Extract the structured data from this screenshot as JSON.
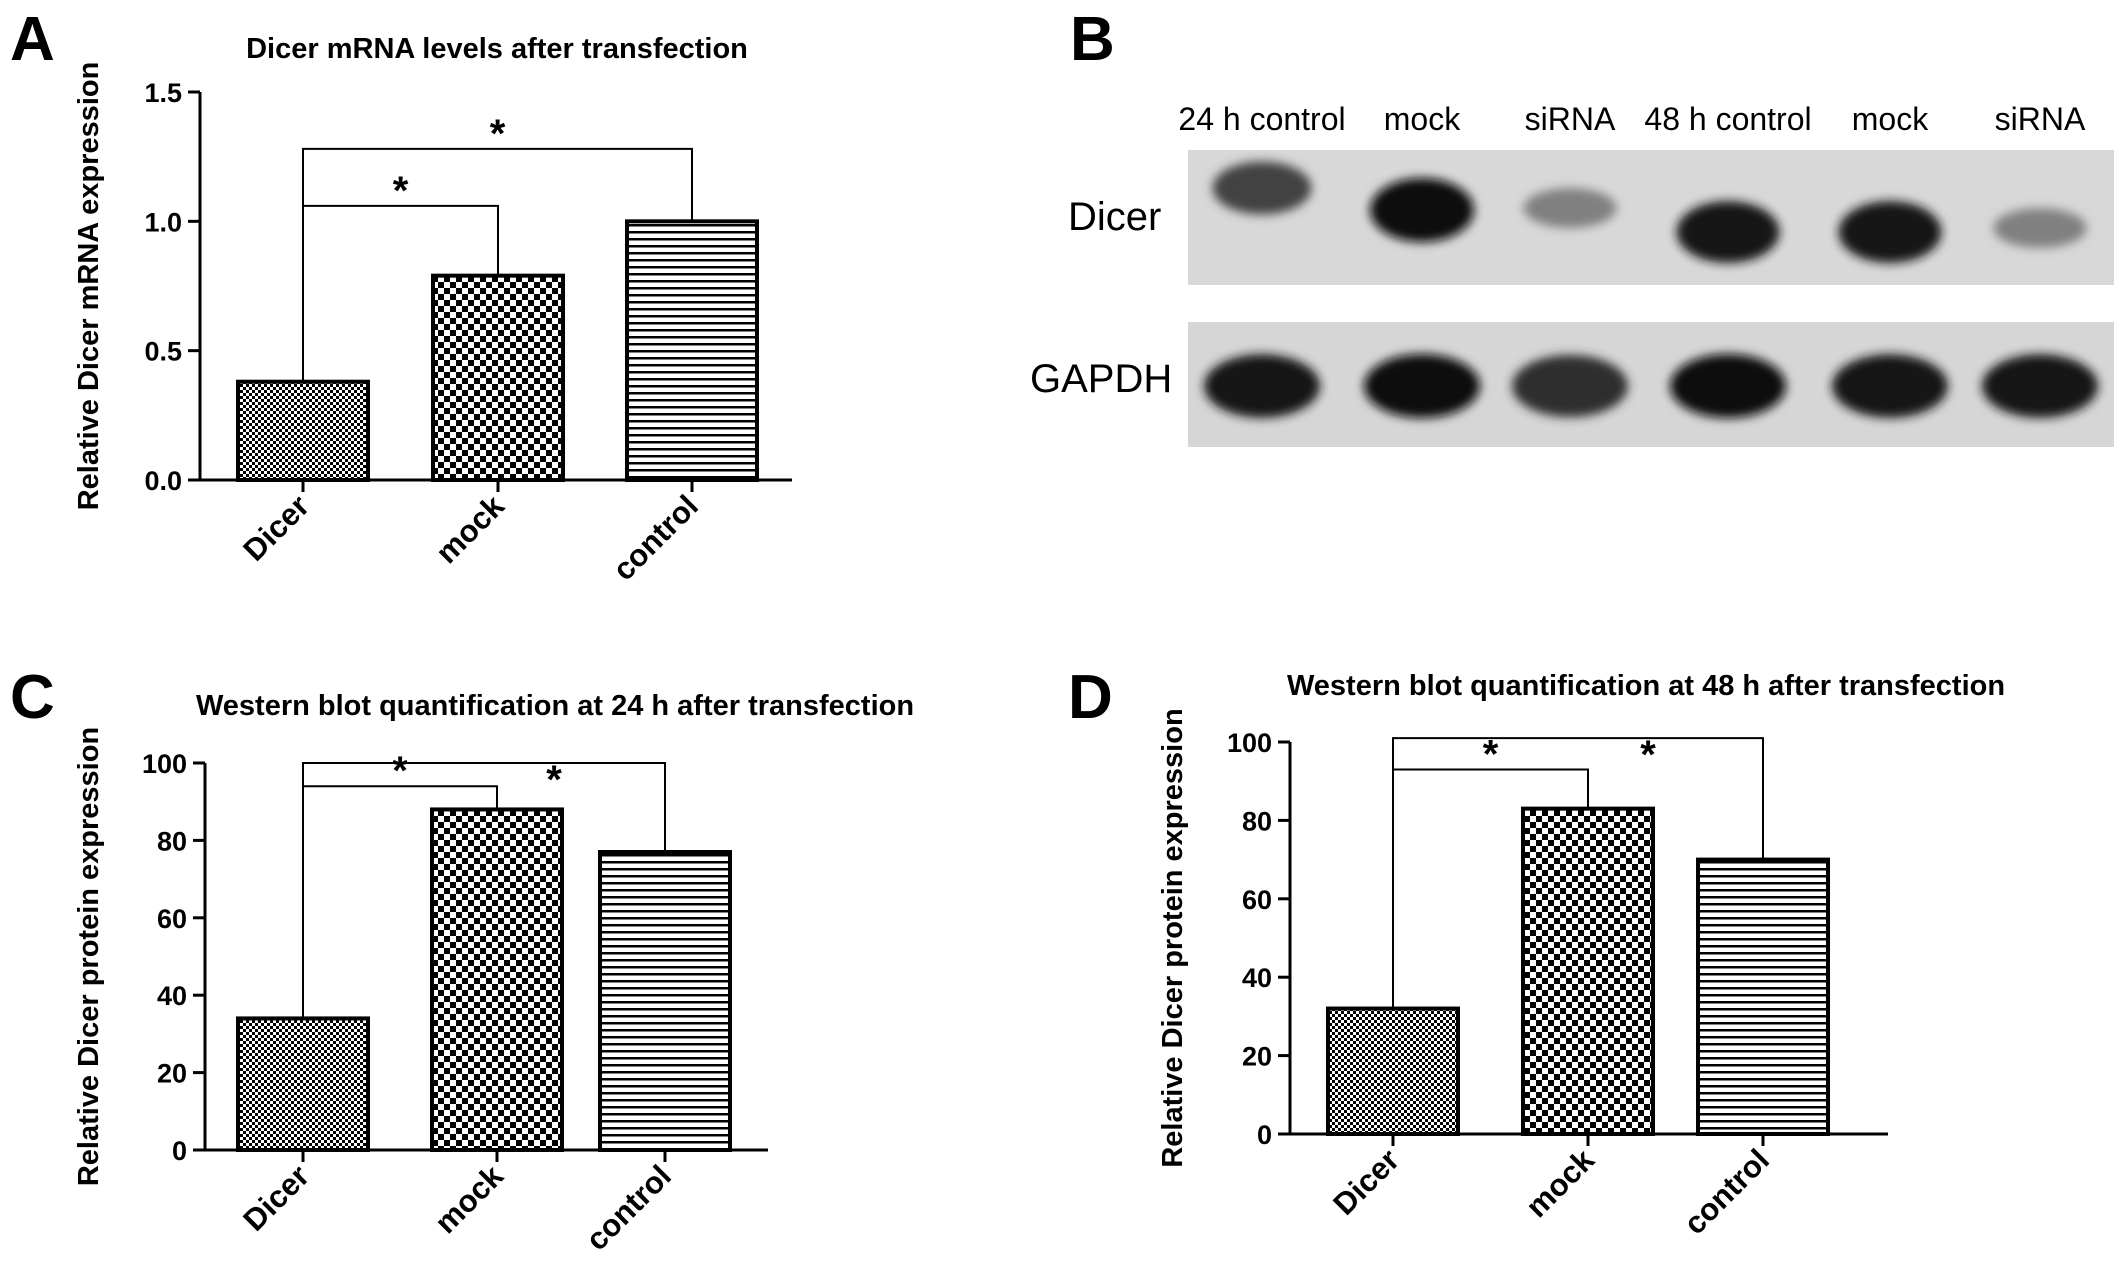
{
  "panel_labels": [
    "A",
    "B",
    "C",
    "D"
  ],
  "chart_data": [
    {
      "id": "A",
      "type": "bar",
      "title": "Dicer mRNA levels after transfection",
      "xlabel": "",
      "ylabel": "Relative Dicer mRNA expression",
      "categories": [
        "Dicer",
        "mock",
        "control"
      ],
      "values": [
        0.38,
        0.79,
        1.0
      ],
      "patterns": [
        "fine-dots",
        "checker",
        "horizontal-lines"
      ],
      "ylim": [
        0,
        1.5
      ],
      "yticks": [
        "0.0",
        "0.5",
        "1.0",
        "1.5"
      ],
      "ytick_values": [
        0,
        0.5,
        1.0,
        1.5
      ],
      "grid": false,
      "significance": [
        {
          "from": "Dicer",
          "to": "mock",
          "label": "*",
          "y": 1.06
        },
        {
          "from": "Dicer",
          "to": "control",
          "label": "*",
          "y": 1.28
        }
      ]
    },
    {
      "id": "C",
      "type": "bar",
      "title": "Western blot quantification at 24 h after transfection",
      "xlabel": "",
      "ylabel": "Relative Dicer protein expression",
      "categories": [
        "Dicer",
        "mock",
        "control"
      ],
      "values": [
        34,
        88,
        77
      ],
      "patterns": [
        "fine-dots",
        "checker",
        "horizontal-lines"
      ],
      "ylim": [
        0,
        100
      ],
      "yticks": [
        "0",
        "20",
        "40",
        "60",
        "80",
        "100"
      ],
      "ytick_values": [
        0,
        20,
        40,
        60,
        80,
        100
      ],
      "grid": false,
      "significance": [
        {
          "from": "Dicer",
          "to": "mock",
          "label": "*",
          "y": 94
        },
        {
          "from": "Dicer",
          "to": "control",
          "label": "*",
          "y": 100
        }
      ]
    },
    {
      "id": "D",
      "type": "bar",
      "title": "Western blot quantification at 48 h after transfection",
      "xlabel": "",
      "ylabel": "Relative Dicer protein expression",
      "categories": [
        "Dicer",
        "mock",
        "control"
      ],
      "values": [
        32,
        83,
        70
      ],
      "patterns": [
        "fine-dots",
        "checker",
        "horizontal-lines"
      ],
      "ylim": [
        0,
        100
      ],
      "yticks": [
        "0",
        "20",
        "40",
        "60",
        "80",
        "100"
      ],
      "ytick_values": [
        0,
        20,
        40,
        60,
        80,
        100
      ],
      "grid": false,
      "significance": [
        {
          "from": "Dicer",
          "to": "mock",
          "label": "*",
          "y": 93
        },
        {
          "from": "Dicer",
          "to": "control",
          "label": "*",
          "y": 101
        }
      ]
    }
  ],
  "western_blot": {
    "lane_labels": [
      "24 h control",
      "mock",
      "siRNA",
      "48 h control",
      "mock",
      "siRNA"
    ],
    "row_labels": [
      "Dicer",
      "GAPDH"
    ],
    "dicer_band_intensity": [
      0.75,
      1.0,
      0.45,
      0.95,
      0.95,
      0.45
    ],
    "gapdh_band_intensity": [
      0.95,
      1.0,
      0.85,
      1.0,
      0.95,
      0.95
    ]
  }
}
